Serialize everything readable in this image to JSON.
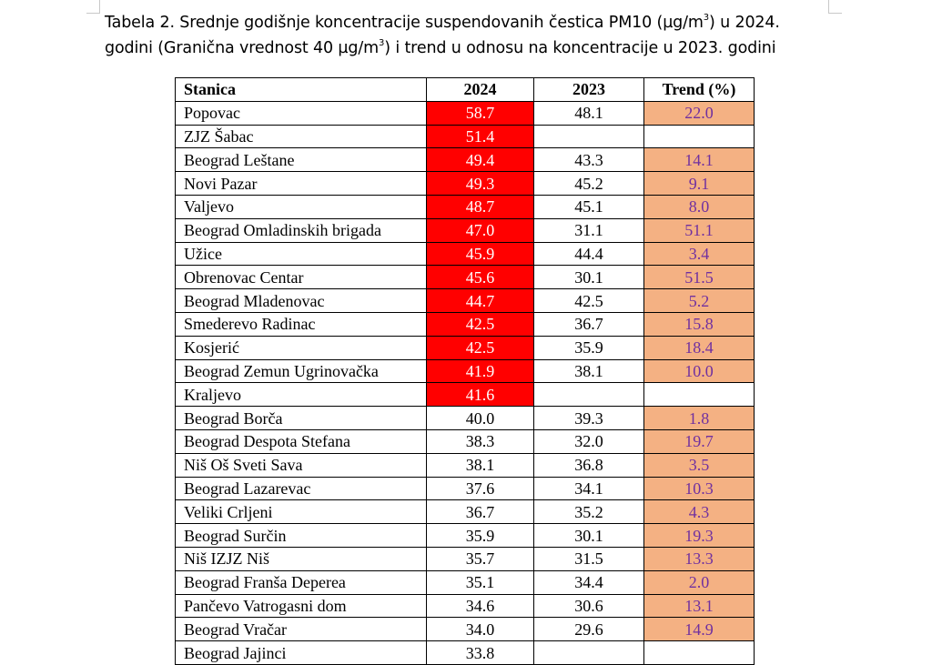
{
  "caption": {
    "line1_pre": "Tabela 2. Srednje godišnje koncentracije suspendovanih čestica PM10 (µg/m",
    "line1_sup": "3",
    "line1_post": ") u 2024.",
    "line2_pre": "godini (Granična vrednost 40 µg/m",
    "line2_sup": "3",
    "line2_post": ") i trend u odnosu na koncentracije u 2023. godini"
  },
  "table": {
    "headers": {
      "station": "Stanica",
      "y2024": "2024",
      "y2023": "2023",
      "trend": "Trend (%)"
    },
    "highlight_colors": {
      "exceed_bg": "#ff0000",
      "exceed_text": "#ffffff",
      "trend_bg": "#f4b183",
      "trend_text": "#7030a0"
    },
    "rows": [
      {
        "station": "Popovac",
        "y2024": "58.7",
        "y2023": "48.1",
        "trend": "22.0",
        "exceed": true
      },
      {
        "station": "ZJZ Šabac",
        "y2024": "51.4",
        "y2023": "",
        "trend": "",
        "exceed": true
      },
      {
        "station": "Beograd Leštane",
        "y2024": "49.4",
        "y2023": "43.3",
        "trend": "14.1",
        "exceed": true
      },
      {
        "station": "Novi Pazar",
        "y2024": "49.3",
        "y2023": "45.2",
        "trend": "9.1",
        "exceed": true
      },
      {
        "station": "Valjevo",
        "y2024": "48.7",
        "y2023": "45.1",
        "trend": "8.0",
        "exceed": true
      },
      {
        "station": "Beograd Omladinskih brigada",
        "y2024": "47.0",
        "y2023": "31.1",
        "trend": "51.1",
        "exceed": true
      },
      {
        "station": "Užice",
        "y2024": "45.9",
        "y2023": "44.4",
        "trend": "3.4",
        "exceed": true
      },
      {
        "station": "Obrenovac Centar",
        "y2024": "45.6",
        "y2023": "30.1",
        "trend": "51.5",
        "exceed": true
      },
      {
        "station": "Beograd Mladenovac",
        "y2024": "44.7",
        "y2023": "42.5",
        "trend": "5.2",
        "exceed": true
      },
      {
        "station": "Smederevo Radinac",
        "y2024": "42.5",
        "y2023": "36.7",
        "trend": "15.8",
        "exceed": true
      },
      {
        "station": "Kosjerić",
        "y2024": "42.5",
        "y2023": "35.9",
        "trend": "18.4",
        "exceed": true
      },
      {
        "station": "Beograd Zemun Ugrinovačka",
        "y2024": "41.9",
        "y2023": "38.1",
        "trend": "10.0",
        "exceed": true
      },
      {
        "station": "Kraljevo",
        "y2024": "41.6",
        "y2023": "",
        "trend": "",
        "exceed": true
      },
      {
        "station": "Beograd Borča",
        "y2024": "40.0",
        "y2023": "39.3",
        "trend": "1.8",
        "exceed": false
      },
      {
        "station": "Beograd Despota Stefana",
        "y2024": "38.3",
        "y2023": "32.0",
        "trend": "19.7",
        "exceed": false
      },
      {
        "station": "Niš Oš Sveti Sava",
        "y2024": "38.1",
        "y2023": "36.8",
        "trend": "3.5",
        "exceed": false
      },
      {
        "station": "Beograd Lazarevac",
        "y2024": "37.6",
        "y2023": "34.1",
        "trend": "10.3",
        "exceed": false
      },
      {
        "station": "Veliki Crljeni",
        "y2024": "36.7",
        "y2023": "35.2",
        "trend": "4.3",
        "exceed": false
      },
      {
        "station": "Beograd Surčin",
        "y2024": "35.9",
        "y2023": "30.1",
        "trend": "19.3",
        "exceed": false
      },
      {
        "station": "Niš IZJZ Niš",
        "y2024": "35.7",
        "y2023": "31.5",
        "trend": "13.3",
        "exceed": false
      },
      {
        "station": "Beograd Franša Deperea",
        "y2024": "35.1",
        "y2023": "34.4",
        "trend": "2.0",
        "exceed": false
      },
      {
        "station": "Pančevo Vatrogasni dom",
        "y2024": "34.6",
        "y2023": "30.6",
        "trend": "13.1",
        "exceed": false
      },
      {
        "station": "Beograd Vračar",
        "y2024": "34.0",
        "y2023": "29.6",
        "trend": "14.9",
        "exceed": false
      },
      {
        "station": "Beograd Jajinci",
        "y2024": "33.8",
        "y2023": "",
        "trend": "",
        "exceed": false
      }
    ]
  }
}
